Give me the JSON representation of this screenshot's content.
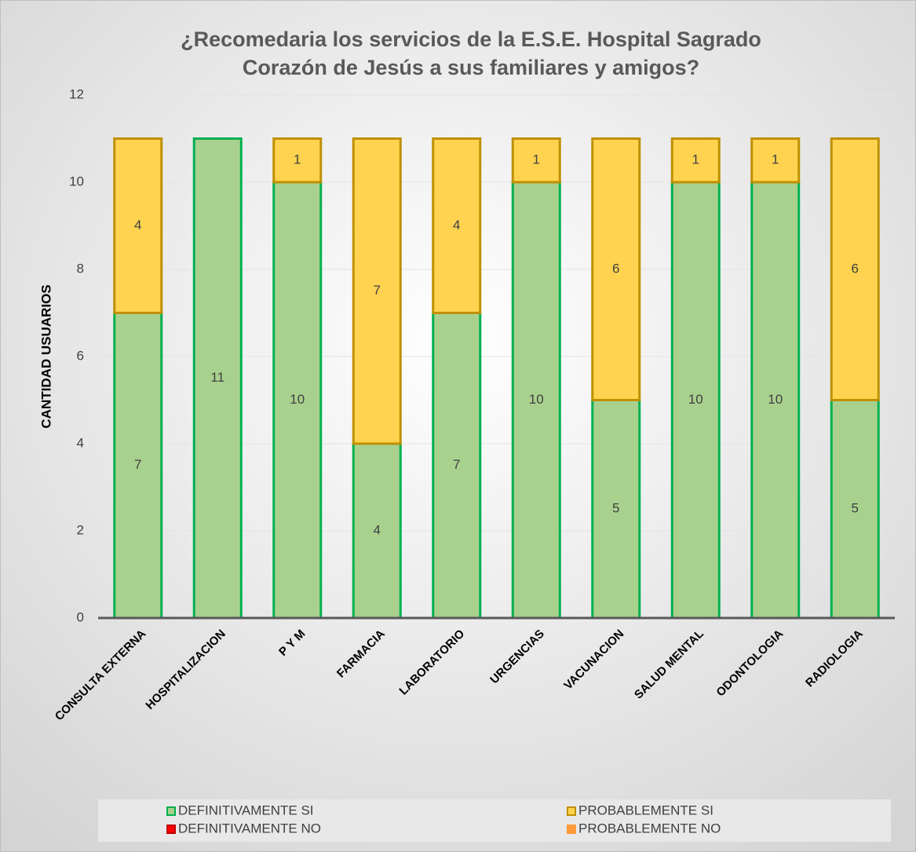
{
  "chart_data": {
    "type": "stacked_bar",
    "title": "¿Recomedaria los servicios de la E.S.E. Hospital Sagrado Corazón de Jesús a sus familiares y amigos?",
    "y_label": "CANTIDAD USUARIOS",
    "categories": [
      "CONSULTA EXTERNA",
      "HOSPITALIZACION",
      "P Y M",
      "FARMACIA",
      "LABORATORIO",
      "URGENCIAS",
      "VACUNACION",
      "SALUD MENTAL",
      "ODONTOLOGIA",
      "RADIOLOGIA"
    ],
    "series": [
      {
        "name": "DEFINITIVAMENTE SI",
        "color": "#a9d18e",
        "stroke": "#00b050",
        "values": [
          7,
          11,
          10,
          4,
          7,
          10,
          5,
          10,
          10,
          5
        ]
      },
      {
        "name": "PROBABLEMENTE SI",
        "color": "#ffd34f",
        "stroke": "#bf9000",
        "values": [
          4,
          null,
          1,
          7,
          4,
          1,
          6,
          1,
          1,
          6
        ]
      },
      {
        "name": "DEFINITIVAMENTE NO",
        "color": "#ff0000",
        "stroke": "#c00000",
        "values": [
          null,
          null,
          null,
          null,
          null,
          null,
          null,
          null,
          null,
          null
        ]
      },
      {
        "name": "PROBABLEMENTE NO",
        "color": "#ff9a3c",
        "stroke": "#ff9a3c",
        "values": [
          null,
          null,
          null,
          null,
          null,
          null,
          null,
          null,
          null,
          null
        ]
      }
    ],
    "ylim": [
      0,
      12
    ],
    "yticks": [
      0,
      2,
      4,
      6,
      8,
      10,
      12
    ],
    "grid": true,
    "legend": "bottom"
  }
}
